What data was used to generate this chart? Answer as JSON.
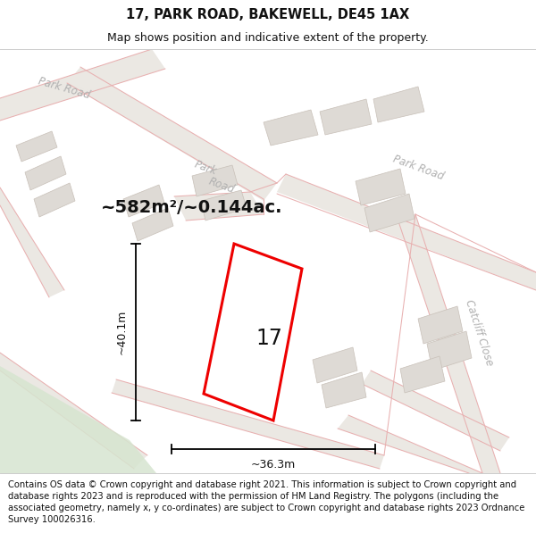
{
  "title": "17, PARK ROAD, BAKEWELL, DE45 1AX",
  "subtitle": "Map shows position and indicative extent of the property.",
  "footer": "Contains OS data © Crown copyright and database right 2021. This information is subject to Crown copyright and database rights 2023 and is reproduced with the permission of HM Land Registry. The polygons (including the associated geometry, namely x, y co-ordinates) are subject to Crown copyright and database rights 2023 Ordnance Survey 100026316.",
  "area_label": "~582m²/~0.144ac.",
  "plot_number": "17",
  "dim_horizontal": "~36.3m",
  "dim_vertical": "~40.1m",
  "map_bg": "#f7f5f2",
  "road_label_color": "#b0b0b0",
  "plot_fill": "#ffffff",
  "plot_edge": "#ee0000",
  "green_fill": "#d6e5d0",
  "building_fill": "#dedad5",
  "building_edge": "#c8c0b8",
  "road_fill": "#ebe8e3",
  "road_line_color": "#e8b0b0",
  "dim_line_color": "#111111",
  "title_fontsize": 10.5,
  "subtitle_fontsize": 9,
  "footer_fontsize": 7.2,
  "road_lw": 0.75,
  "plot_lw": 2.2
}
